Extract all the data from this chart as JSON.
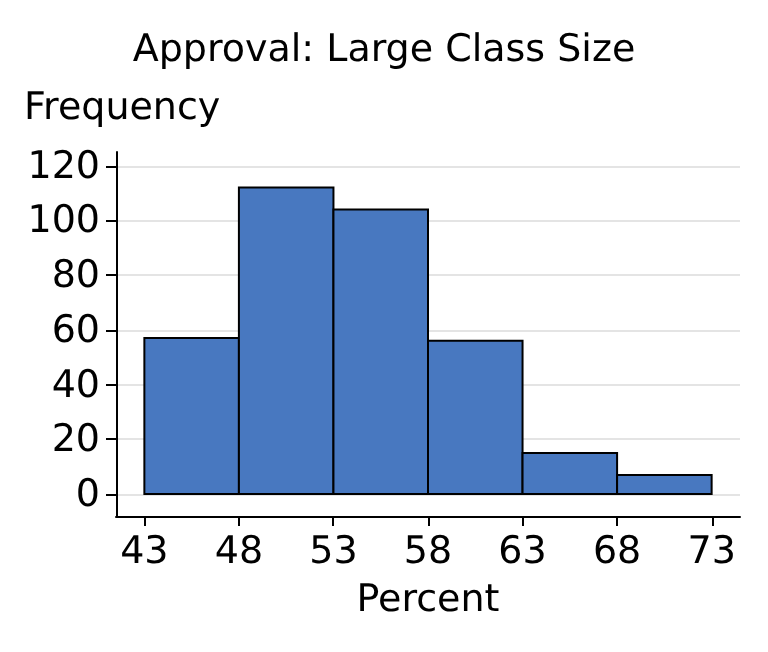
{
  "chart_data": {
    "type": "histogram",
    "title": "Approval: Large Class Size",
    "xlabel": "Percent",
    "ylabel": "Frequency",
    "bins": [
      43,
      48,
      53,
      58,
      63,
      68,
      73
    ],
    "values": [
      57,
      112,
      104,
      56,
      15,
      7
    ],
    "color": "#4878c0",
    "xlim": [
      41.5,
      74.5
    ],
    "xticks": [
      43,
      48,
      53,
      58,
      63,
      68,
      73
    ],
    "ylim": [
      -8,
      125
    ],
    "yticks": [
      0,
      20,
      40,
      60,
      80,
      100,
      120
    ],
    "grid": "y"
  }
}
